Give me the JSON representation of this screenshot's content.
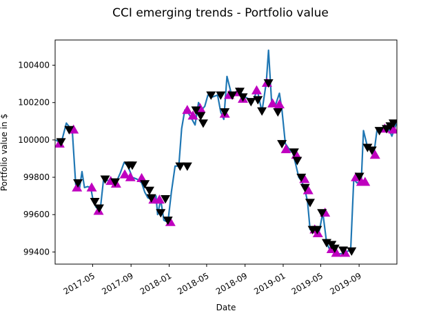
{
  "chart_data": {
    "type": "line",
    "title": "CCI emerging trends - Portfolio value",
    "xlabel": "Date",
    "ylabel": "Portfolio value in $",
    "xlim": [
      "2017-01-01",
      "2019-12-31"
    ],
    "ylim": [
      99335,
      100535
    ],
    "x_ticks": [
      {
        "date": "2017-05-01",
        "label": "2017-05"
      },
      {
        "date": "2017-09-01",
        "label": "2017-09"
      },
      {
        "date": "2018-01-01",
        "label": "2018-01"
      },
      {
        "date": "2018-05-01",
        "label": "2018-05"
      },
      {
        "date": "2018-09-01",
        "label": "2018-09"
      },
      {
        "date": "2019-01-01",
        "label": "2019-01"
      },
      {
        "date": "2019-05-01",
        "label": "2019-05"
      },
      {
        "date": "2019-09-01",
        "label": "2019-09"
      }
    ],
    "y_ticks": [
      99400,
      99600,
      99800,
      100000,
      100200,
      100400
    ],
    "grid": false,
    "line_color": "#1f77b4",
    "buy_marker_color": "#bf00bf",
    "sell_marker_color": "#000000",
    "series": [
      {
        "values": [
          [
            "2017-01-03",
            100000
          ],
          [
            "2017-01-20",
            99980
          ],
          [
            "2017-02-06",
            100090
          ],
          [
            "2017-02-25",
            100050
          ],
          [
            "2017-03-08",
            99760
          ],
          [
            "2017-03-20",
            99740
          ],
          [
            "2017-03-28",
            99830
          ],
          [
            "2017-04-05",
            99745
          ],
          [
            "2017-04-15",
            99750
          ],
          [
            "2017-04-25",
            99745
          ],
          [
            "2017-05-02",
            99680
          ],
          [
            "2017-05-12",
            99640
          ],
          [
            "2017-05-25",
            99620
          ],
          [
            "2017-06-05",
            99790
          ],
          [
            "2017-06-25",
            99780
          ],
          [
            "2017-07-12",
            99760
          ],
          [
            "2017-07-28",
            99820
          ],
          [
            "2017-08-10",
            99880
          ],
          [
            "2017-08-22",
            99860
          ],
          [
            "2017-09-05",
            99800
          ],
          [
            "2017-09-20",
            99790
          ],
          [
            "2017-10-05",
            99770
          ],
          [
            "2017-10-15",
            99720
          ],
          [
            "2017-10-25",
            99690
          ],
          [
            "2017-11-08",
            99680
          ],
          [
            "2017-11-20",
            99700
          ],
          [
            "2017-11-25",
            99600
          ],
          [
            "2017-12-05",
            99680
          ],
          [
            "2017-12-15",
            99570
          ],
          [
            "2017-12-28",
            99560
          ],
          [
            "2018-01-08",
            99720
          ],
          [
            "2018-01-20",
            99860
          ],
          [
            "2018-02-01",
            99860
          ],
          [
            "2018-02-10",
            100060
          ],
          [
            "2018-02-20",
            100160
          ],
          [
            "2018-03-05",
            100140
          ],
          [
            "2018-03-15",
            100110
          ],
          [
            "2018-03-25",
            100080
          ],
          [
            "2018-04-05",
            100200
          ],
          [
            "2018-04-15",
            100160
          ],
          [
            "2018-04-25",
            100180
          ],
          [
            "2018-05-05",
            100240
          ],
          [
            "2018-05-20",
            100230
          ],
          [
            "2018-06-05",
            100240
          ],
          [
            "2018-06-15",
            100150
          ],
          [
            "2018-06-25",
            100110
          ],
          [
            "2018-07-05",
            100340
          ],
          [
            "2018-07-20",
            100240
          ],
          [
            "2018-08-05",
            100260
          ],
          [
            "2018-08-20",
            100250
          ],
          [
            "2018-09-01",
            100230
          ],
          [
            "2018-09-12",
            100220
          ],
          [
            "2018-09-25",
            100200
          ],
          [
            "2018-10-10",
            100270
          ],
          [
            "2018-10-25",
            100150
          ],
          [
            "2018-11-08",
            100310
          ],
          [
            "2018-11-15",
            100480
          ],
          [
            "2018-11-25",
            100200
          ],
          [
            "2018-12-08",
            100190
          ],
          [
            "2018-12-20",
            100250
          ],
          [
            "2018-12-28",
            100160
          ],
          [
            "2019-01-08",
            99980
          ],
          [
            "2019-01-20",
            99950
          ],
          [
            "2019-02-01",
            99930
          ],
          [
            "2019-02-10",
            99870
          ],
          [
            "2019-02-20",
            99800
          ],
          [
            "2019-03-01",
            99780
          ],
          [
            "2019-03-12",
            99730
          ],
          [
            "2019-03-20",
            99670
          ],
          [
            "2019-03-28",
            99520
          ],
          [
            "2019-04-12",
            99520
          ],
          [
            "2019-04-25",
            99500
          ],
          [
            "2019-05-08",
            99610
          ],
          [
            "2019-05-20",
            99450
          ],
          [
            "2019-05-28",
            99420
          ],
          [
            "2019-06-08",
            99430
          ],
          [
            "2019-06-20",
            99390
          ],
          [
            "2019-07-05",
            99390
          ],
          [
            "2019-07-20",
            99400
          ],
          [
            "2019-08-05",
            99410
          ],
          [
            "2019-08-15",
            99790
          ],
          [
            "2019-08-25",
            99770
          ],
          [
            "2019-09-08",
            99780
          ],
          [
            "2019-09-15",
            100050
          ],
          [
            "2019-09-28",
            99960
          ],
          [
            "2019-10-08",
            99950
          ],
          [
            "2019-10-18",
            99920
          ],
          [
            "2019-10-28",
            100050
          ],
          [
            "2019-11-08",
            100050
          ],
          [
            "2019-11-20",
            100060
          ],
          [
            "2019-12-05",
            100060
          ],
          [
            "2019-12-15",
            100020
          ],
          [
            "2019-12-30",
            100090
          ]
        ]
      }
    ],
    "buy_markers": [
      [
        "2017-01-15",
        99980
      ],
      [
        "2017-03-01",
        100055
      ],
      [
        "2017-03-12",
        99745
      ],
      [
        "2017-04-28",
        99745
      ],
      [
        "2017-05-20",
        99620
      ],
      [
        "2017-06-28",
        99780
      ],
      [
        "2017-07-15",
        99765
      ],
      [
        "2017-08-12",
        99815
      ],
      [
        "2017-08-30",
        99800
      ],
      [
        "2017-10-05",
        99795
      ],
      [
        "2017-11-12",
        99680
      ],
      [
        "2017-12-01",
        99680
      ],
      [
        "2018-01-05",
        99560
      ],
      [
        "2018-02-28",
        100160
      ],
      [
        "2018-03-18",
        100130
      ],
      [
        "2018-04-10",
        100170
      ],
      [
        "2018-06-28",
        100140
      ],
      [
        "2018-07-12",
        100240
      ],
      [
        "2018-08-10",
        100255
      ],
      [
        "2018-08-25",
        100220
      ],
      [
        "2018-10-08",
        100265
      ],
      [
        "2018-11-10",
        100305
      ],
      [
        "2018-11-28",
        100195
      ],
      [
        "2018-12-20",
        100190
      ],
      [
        "2019-01-10",
        99950
      ],
      [
        "2019-02-12",
        99920
      ],
      [
        "2019-03-10",
        99790
      ],
      [
        "2019-03-22",
        99730
      ],
      [
        "2019-04-12",
        99520
      ],
      [
        "2019-04-22",
        99500
      ],
      [
        "2019-05-15",
        99610
      ],
      [
        "2019-06-05",
        99415
      ],
      [
        "2019-06-20",
        99395
      ],
      [
        "2019-07-18",
        99395
      ],
      [
        "2019-08-22",
        99800
      ],
      [
        "2019-09-08",
        99775
      ],
      [
        "2019-09-20",
        99775
      ],
      [
        "2019-10-22",
        99920
      ],
      [
        "2019-11-22",
        100060
      ],
      [
        "2019-12-20",
        100055
      ]
    ],
    "sell_markers": [
      [
        "2017-01-20",
        99990
      ],
      [
        "2017-02-15",
        100055
      ],
      [
        "2017-03-15",
        99770
      ],
      [
        "2017-05-08",
        99670
      ],
      [
        "2017-05-22",
        99635
      ],
      [
        "2017-06-10",
        99790
      ],
      [
        "2017-07-12",
        99775
      ],
      [
        "2017-08-25",
        99865
      ],
      [
        "2017-09-05",
        99865
      ],
      [
        "2017-10-15",
        99765
      ],
      [
        "2017-10-30",
        99730
      ],
      [
        "2017-11-05",
        99690
      ],
      [
        "2017-12-05",
        99610
      ],
      [
        "2017-12-20",
        99685
      ],
      [
        "2017-12-28",
        99570
      ],
      [
        "2018-02-05",
        99860
      ],
      [
        "2018-02-28",
        99860
      ],
      [
        "2018-03-28",
        100160
      ],
      [
        "2018-04-12",
        100130
      ],
      [
        "2018-04-20",
        100090
      ],
      [
        "2018-05-15",
        100240
      ],
      [
        "2018-06-15",
        100240
      ],
      [
        "2018-06-28",
        100150
      ],
      [
        "2018-07-22",
        100240
      ],
      [
        "2018-08-15",
        100260
      ],
      [
        "2018-08-25",
        100230
      ],
      [
        "2018-09-20",
        100205
      ],
      [
        "2018-10-12",
        100215
      ],
      [
        "2018-10-25",
        100155
      ],
      [
        "2018-11-15",
        100305
      ],
      [
        "2018-12-15",
        100150
      ],
      [
        "2018-12-28",
        99980
      ],
      [
        "2019-02-05",
        99935
      ],
      [
        "2019-02-15",
        99890
      ],
      [
        "2019-02-28",
        99800
      ],
      [
        "2019-03-12",
        99745
      ],
      [
        "2019-03-28",
        99665
      ],
      [
        "2019-04-05",
        99520
      ],
      [
        "2019-04-20",
        99520
      ],
      [
        "2019-05-05",
        99610
      ],
      [
        "2019-05-20",
        99450
      ],
      [
        "2019-06-05",
        99440
      ],
      [
        "2019-06-15",
        99420
      ],
      [
        "2019-07-12",
        99410
      ],
      [
        "2019-08-08",
        99405
      ],
      [
        "2019-09-02",
        99805
      ],
      [
        "2019-09-28",
        99960
      ],
      [
        "2019-10-12",
        99945
      ],
      [
        "2019-11-05",
        100050
      ],
      [
        "2019-11-28",
        100060
      ],
      [
        "2019-12-10",
        100075
      ],
      [
        "2019-12-20",
        100090
      ]
    ]
  }
}
